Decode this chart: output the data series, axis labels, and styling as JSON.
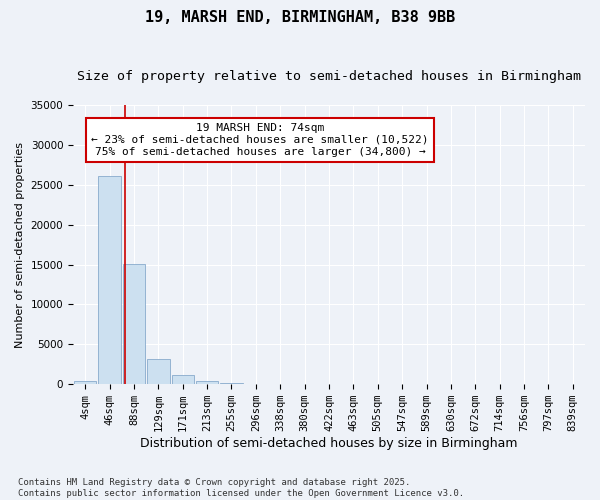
{
  "title": "19, MARSH END, BIRMINGHAM, B38 9BB",
  "subtitle": "Size of property relative to semi-detached houses in Birmingham",
  "xlabel": "Distribution of semi-detached houses by size in Birmingham",
  "ylabel": "Number of semi-detached properties",
  "bin_labels": [
    "4sqm",
    "46sqm",
    "88sqm",
    "129sqm",
    "171sqm",
    "213sqm",
    "255sqm",
    "296sqm",
    "338sqm",
    "380sqm",
    "422sqm",
    "463sqm",
    "505sqm",
    "547sqm",
    "589sqm",
    "630sqm",
    "672sqm",
    "714sqm",
    "756sqm",
    "797sqm",
    "839sqm"
  ],
  "bar_values": [
    350,
    26100,
    15100,
    3200,
    1200,
    450,
    200,
    50,
    0,
    0,
    0,
    0,
    0,
    0,
    0,
    0,
    0,
    0,
    0,
    0,
    0
  ],
  "bar_color": "#cce0f0",
  "bar_edge_color": "#88aacc",
  "ylim": [
    0,
    35000
  ],
  "yticks": [
    0,
    5000,
    10000,
    15000,
    20000,
    25000,
    30000,
    35000
  ],
  "property_line_bin_index": 1.65,
  "annotation_text": "19 MARSH END: 74sqm\n← 23% of semi-detached houses are smaller (10,522)\n75% of semi-detached houses are larger (34,800) →",
  "annotation_box_color": "#ffffff",
  "annotation_box_edge": "#cc0000",
  "vline_color": "#cc0000",
  "background_color": "#eef2f8",
  "plot_bg_color": "#eef2f8",
  "grid_color": "#ffffff",
  "footnote": "Contains HM Land Registry data © Crown copyright and database right 2025.\nContains public sector information licensed under the Open Government Licence v3.0.",
  "title_fontsize": 11,
  "subtitle_fontsize": 9.5,
  "xlabel_fontsize": 9,
  "ylabel_fontsize": 8,
  "tick_fontsize": 7.5,
  "annotation_fontsize": 8,
  "footnote_fontsize": 6.5
}
